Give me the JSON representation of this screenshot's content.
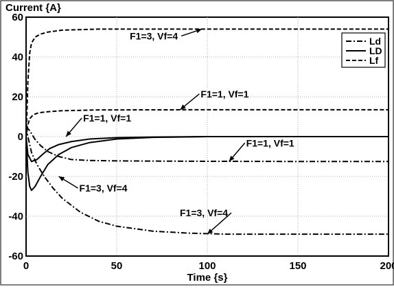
{
  "chart_data": {
    "type": "line",
    "title": "",
    "xlabel": "Time {s}",
    "ylabel": "Current {A}",
    "xlim": [
      0,
      200
    ],
    "ylim": [
      -60,
      60
    ],
    "xticks": [
      "0",
      "50",
      "100",
      "150",
      "200"
    ],
    "yticks": [
      "60",
      "40",
      "20",
      "0",
      "-20",
      "-40",
      "-60"
    ],
    "grid": true,
    "legend": {
      "position": "top-right",
      "entries": [
        "Ld",
        "LD",
        "Lf"
      ]
    },
    "series": [
      {
        "name": "Lf",
        "case": "F1=3, Vf=4",
        "style": "dashed",
        "x": [
          0,
          1,
          2,
          3,
          5,
          8,
          12,
          20,
          40,
          100,
          200
        ],
        "y": [
          -2,
          28,
          42,
          47,
          50,
          51.5,
          52.5,
          53.5,
          54,
          54,
          54
        ]
      },
      {
        "name": "Lf",
        "case": "F1=1, Vf=1",
        "style": "dashed",
        "x": [
          0,
          1,
          2,
          4,
          7,
          12,
          20,
          40,
          100,
          200
        ],
        "y": [
          0,
          6,
          9,
          11,
          12,
          12.5,
          13,
          13.4,
          13.5,
          13.5
        ]
      },
      {
        "name": "LD",
        "case": "F1=1, Vf=1",
        "style": "solid",
        "x": [
          0,
          1,
          3,
          6,
          9,
          13,
          18,
          25,
          35,
          50,
          70,
          100,
          200
        ],
        "y": [
          0,
          -9,
          -12.5,
          -11.5,
          -9,
          -6,
          -4,
          -2.5,
          -1.2,
          -0.5,
          -0.2,
          0,
          0
        ]
      },
      {
        "name": "LD",
        "case": "F1=3, Vf=4",
        "style": "solid",
        "x": [
          0,
          1,
          2,
          3,
          5,
          8,
          12,
          18,
          25,
          35,
          50,
          70,
          100,
          200
        ],
        "y": [
          0,
          -18,
          -25,
          -27,
          -25,
          -20,
          -14,
          -9,
          -5.5,
          -3,
          -1.2,
          -0.4,
          0,
          0
        ]
      },
      {
        "name": "Ld",
        "case": "F1=1, Vf=1",
        "style": "dash-dot",
        "x": [
          0,
          2,
          5,
          8,
          12,
          18,
          25,
          35,
          50,
          70,
          100,
          150,
          200
        ],
        "y": [
          5,
          3,
          -1.5,
          -4.5,
          -7.5,
          -10,
          -11.5,
          -12,
          -12.2,
          -12.3,
          -12.4,
          -12.5,
          -12.5
        ]
      },
      {
        "name": "Ld",
        "case": "F1=3, Vf=4",
        "style": "dash-dot",
        "x": [
          0,
          1,
          3,
          6,
          10,
          15,
          20,
          30,
          40,
          50,
          70,
          90,
          110,
          140,
          200
        ],
        "y": [
          5,
          0,
          -8,
          -14,
          -20,
          -26,
          -31,
          -38,
          -42.5,
          -45,
          -47.5,
          -48.5,
          -49,
          -49,
          -49
        ]
      }
    ],
    "annotations": [
      {
        "text": "F1=3, Vf=4",
        "x": 97,
        "y": 54
      },
      {
        "text": "F1=1, Vf=1",
        "x": 85,
        "y": 13.5
      },
      {
        "text": "F1=1, Vf=1",
        "x": 22,
        "y": 0
      },
      {
        "text": "F1=3, Vf=4",
        "x": 18,
        "y": -20
      },
      {
        "text": "F1=1, Vf=1",
        "x": 112,
        "y": -12.5
      },
      {
        "text": "F1=3, Vf=4",
        "x": 100,
        "y": -49
      }
    ]
  }
}
